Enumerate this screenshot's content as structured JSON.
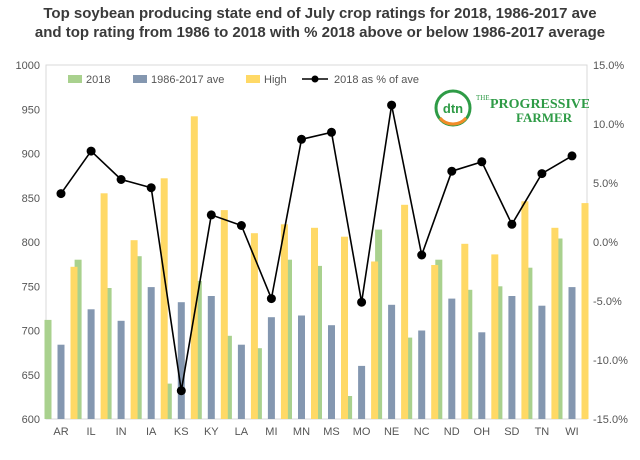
{
  "chart_data": {
    "type": "bar",
    "title_lines": [
      "Top soybean producing state end of July crop ratings for 2018, 1986-2017 ave",
      "and top rating from 1986 to 2018 with %  2018 above or below 1986-2017 average"
    ],
    "categories": [
      "AR",
      "IL",
      "IN",
      "IA",
      "KS",
      "KY",
      "LA",
      "MI",
      "MN",
      "MS",
      "MO",
      "NE",
      "NC",
      "ND",
      "OH",
      "SD",
      "TN",
      "WI"
    ],
    "series": [
      {
        "name": "2018",
        "color": "#a9d18e",
        "values": [
          712,
          780,
          748,
          784,
          640,
          756,
          694,
          680,
          780,
          773,
          626,
          814,
          692,
          780,
          746,
          750,
          771,
          804
        ]
      },
      {
        "name": "1986-2017 ave",
        "color": "#8497b0",
        "values": [
          684,
          724,
          711,
          749,
          732,
          739,
          684,
          715,
          717,
          706,
          660,
          729,
          700,
          736,
          698,
          739,
          728,
          749
        ]
      },
      {
        "name": "High",
        "color": "#ffd966",
        "values": [
          772,
          855,
          802,
          872,
          942,
          836,
          810,
          820,
          816,
          806,
          778,
          842,
          774,
          798,
          786,
          846,
          816,
          844
        ]
      },
      {
        "name": "2018 as % of ave",
        "type": "line",
        "axis": "right",
        "color": "#000000",
        "values": [
          4.1,
          7.7,
          5.3,
          4.6,
          -12.6,
          2.3,
          1.4,
          -4.8,
          8.7,
          9.3,
          -5.1,
          11.6,
          -1.1,
          6.0,
          6.8,
          1.5,
          5.8,
          7.3
        ]
      }
    ],
    "y_left": {
      "min": 600,
      "max": 1000,
      "ticks": [
        "600",
        "650",
        "700",
        "750",
        "800",
        "850",
        "900",
        "950",
        "1000"
      ]
    },
    "y_right": {
      "min": -15,
      "max": 15,
      "ticks": [
        "-15.0%",
        "-10.0%",
        "-5.0%",
        "0.0%",
        "5.0%",
        "10.0%",
        "15.0%"
      ]
    },
    "legend_position": "top",
    "grid": false
  },
  "logo": {
    "name": "dtn-progressive-farmer-logo",
    "text_dtn": "dtn",
    "text_line1": "PROGRESSIVE",
    "text_line2": "FARMER",
    "text_the": "THE",
    "color_green": "#2e9b46",
    "color_orange": "#f28c28"
  }
}
